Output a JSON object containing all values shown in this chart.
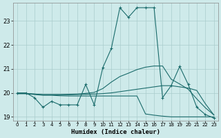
{
  "xlabel": "Humidex (Indice chaleur)",
  "bg_color": "#ceeaea",
  "grid_color": "#aacccc",
  "line_color": "#1a6b6b",
  "xlim": [
    -0.5,
    23.5
  ],
  "ylim": [
    18.85,
    23.75
  ],
  "yticks": [
    19,
    20,
    21,
    22,
    23
  ],
  "xticks": [
    0,
    1,
    2,
    3,
    4,
    5,
    6,
    7,
    8,
    9,
    10,
    11,
    12,
    13,
    14,
    15,
    16,
    17,
    18,
    19,
    20,
    21,
    22,
    23
  ],
  "lines": [
    {
      "x": [
        0,
        1,
        2,
        3,
        4,
        5,
        6,
        7,
        8,
        9,
        10,
        11,
        12,
        13,
        14,
        15,
        16,
        17,
        18,
        19,
        20,
        21,
        22,
        23
      ],
      "y": [
        20.0,
        20.0,
        19.8,
        19.4,
        19.65,
        19.5,
        19.5,
        19.5,
        20.35,
        19.5,
        21.05,
        21.85,
        23.55,
        23.15,
        23.55,
        23.55,
        23.55,
        19.8,
        20.3,
        21.1,
        20.35,
        19.4,
        19.1,
        18.95
      ],
      "marker": "+"
    },
    {
      "x": [
        0,
        1,
        2,
        3,
        4,
        5,
        6,
        7,
        8,
        9,
        10,
        11,
        12,
        13,
        14,
        15,
        16,
        17,
        18,
        19,
        20,
        21,
        22,
        23
      ],
      "y": [
        19.97,
        19.97,
        19.95,
        19.93,
        19.93,
        19.93,
        19.94,
        19.95,
        19.98,
        20.02,
        20.18,
        20.45,
        20.68,
        20.82,
        20.97,
        21.07,
        21.12,
        21.12,
        20.57,
        20.37,
        20.15,
        19.75,
        19.38,
        19.08
      ],
      "marker": null
    },
    {
      "x": [
        0,
        1,
        2,
        3,
        4,
        5,
        6,
        7,
        8,
        9,
        10,
        11,
        12,
        13,
        14,
        15,
        16,
        17,
        18,
        19,
        20,
        21,
        22,
        23
      ],
      "y": [
        19.97,
        19.97,
        19.95,
        19.92,
        19.92,
        19.92,
        19.92,
        19.93,
        19.94,
        19.95,
        19.97,
        20.0,
        20.05,
        20.1,
        20.15,
        20.2,
        20.25,
        20.3,
        20.3,
        20.25,
        20.2,
        20.1,
        19.55,
        19.08
      ],
      "marker": null
    },
    {
      "x": [
        0,
        1,
        2,
        3,
        4,
        5,
        6,
        7,
        8,
        9,
        10,
        11,
        12,
        13,
        14,
        15,
        16,
        17,
        18,
        19,
        20,
        21,
        22,
        23
      ],
      "y": [
        19.97,
        19.97,
        19.93,
        19.9,
        19.9,
        19.88,
        19.87,
        19.87,
        19.87,
        19.87,
        19.87,
        19.87,
        19.87,
        19.87,
        19.87,
        19.12,
        19.07,
        19.03,
        19.0,
        19.0,
        19.0,
        19.0,
        19.0,
        19.0
      ],
      "marker": null
    }
  ]
}
